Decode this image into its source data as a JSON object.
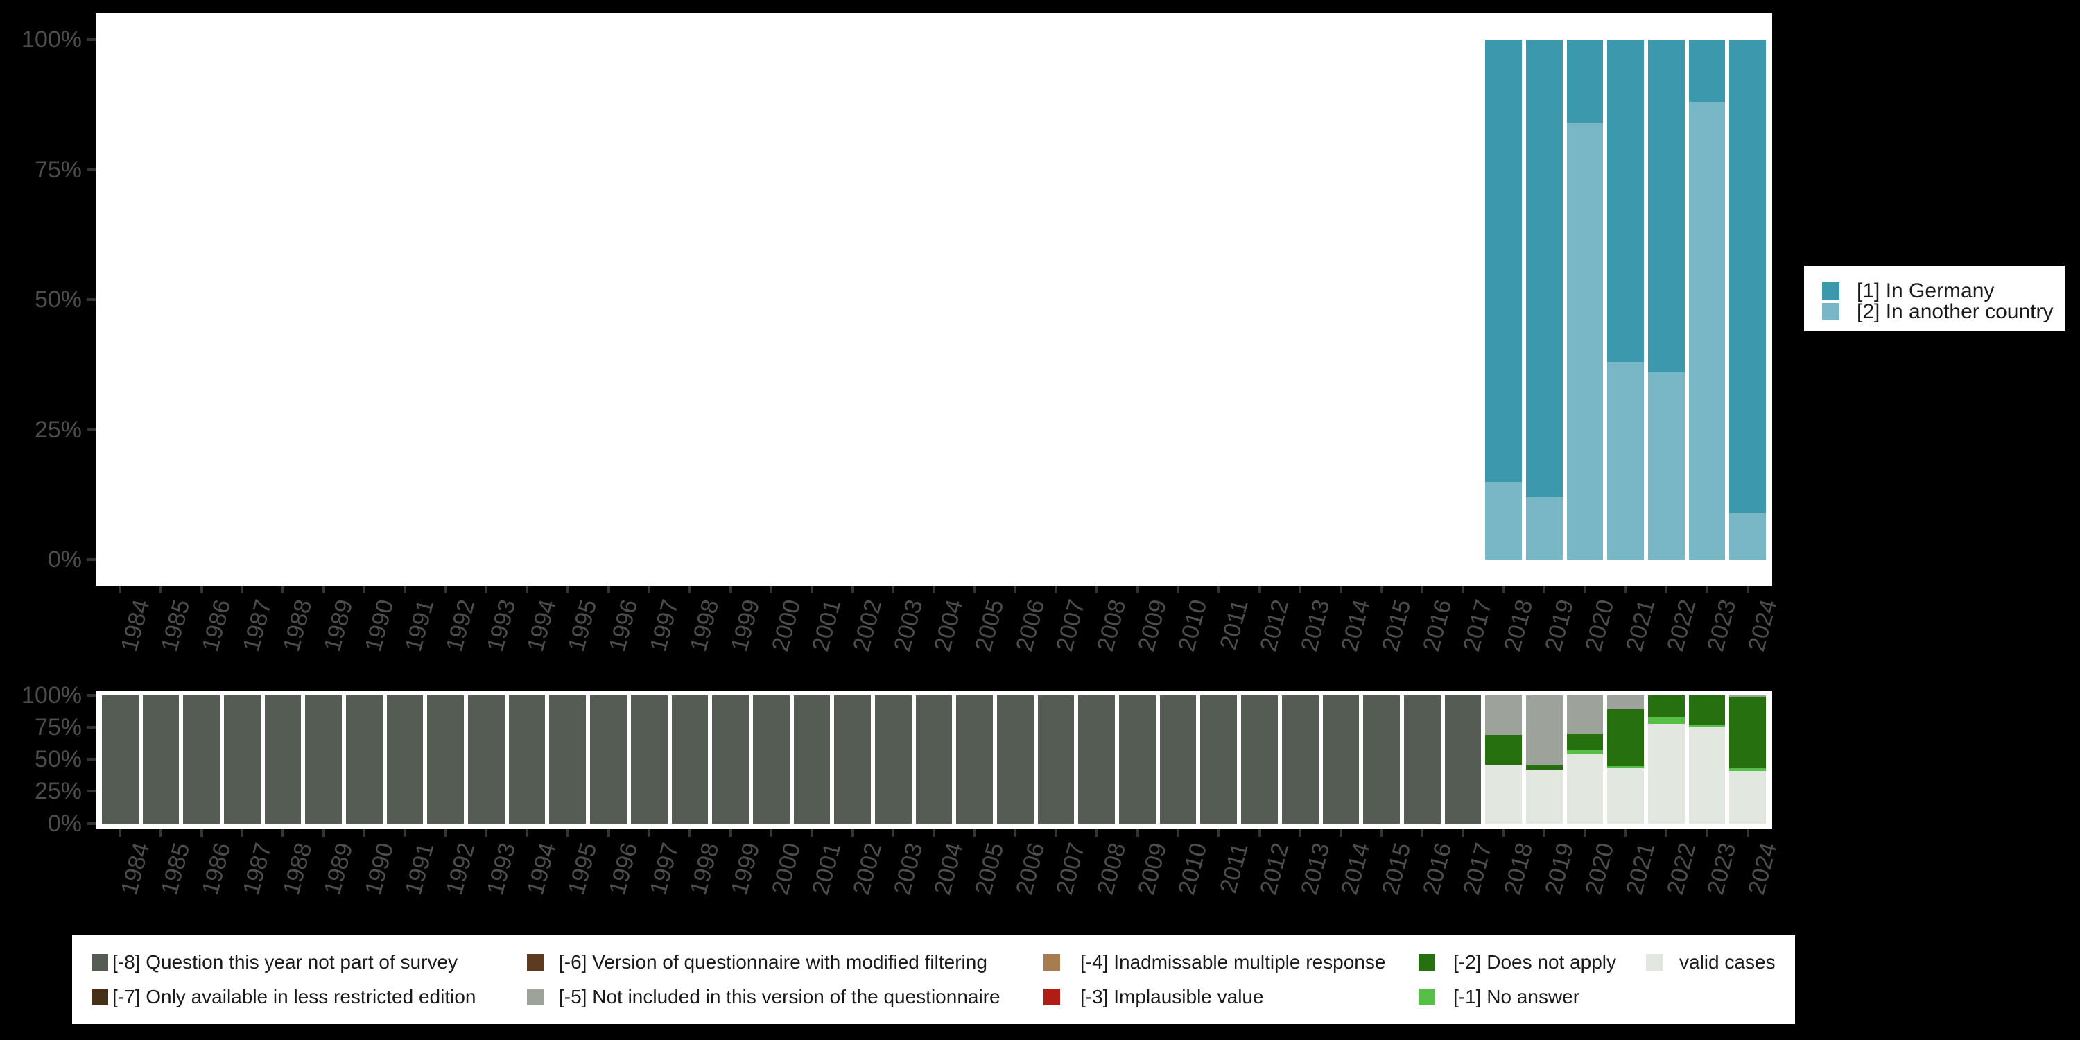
{
  "colors": {
    "background": "#000000",
    "panel": "#ffffff",
    "axis_text": "#4d4d4d",
    "axis_tick": "#333333",
    "legend_text": "#1a1a1a",
    "in_germany": "#3b98ad",
    "another_country": "#79b6c6",
    "m8": "#555c54",
    "m7": "#47301a",
    "m6": "#5d3b21",
    "m5": "#9da39b",
    "m4": "#a87c4f",
    "m3": "#b11c14",
    "m2": "#26700f",
    "m1": "#57bf48",
    "valid": "#e2e7df"
  },
  "axes": {
    "y_tick_labels": [
      "100%",
      "75%",
      "50%",
      "25%",
      "0%"
    ],
    "years": [
      "1984",
      "1985",
      "1986",
      "1987",
      "1988",
      "1989",
      "1990",
      "1991",
      "1992",
      "1993",
      "1994",
      "1995",
      "1996",
      "1997",
      "1998",
      "1999",
      "2000",
      "2001",
      "2002",
      "2003",
      "2004",
      "2005",
      "2006",
      "2007",
      "2008",
      "2009",
      "2010",
      "2011",
      "2012",
      "2013",
      "2014",
      "2015",
      "2016",
      "2017",
      "2018",
      "2019",
      "2020",
      "2021",
      "2022",
      "2023",
      "2024"
    ]
  },
  "legend_top": {
    "items": [
      {
        "label": "[1] In Germany",
        "color_key": "in_germany"
      },
      {
        "label": "[2] In another country",
        "color_key": "another_country"
      }
    ]
  },
  "legend_bottom": {
    "columns": [
      [
        {
          "label": "[-8] Question this year not part of survey",
          "color_key": "m8"
        },
        {
          "label": "[-7] Only available in less restricted edition",
          "color_key": "m7"
        }
      ],
      [
        {
          "label": "[-6] Version of questionnaire with modified filtering",
          "color_key": "m6"
        },
        {
          "label": "[-5] Not included in this version of the questionnaire",
          "color_key": "m5"
        }
      ],
      [
        {
          "label": "[-4] Inadmissable multiple response",
          "color_key": "m4"
        },
        {
          "label": "[-3] Implausible value",
          "color_key": "m3"
        }
      ],
      [
        {
          "label": "[-2] Does not apply",
          "color_key": "m2"
        },
        {
          "label": "[-1] No answer",
          "color_key": "m1"
        }
      ],
      [
        {
          "label": "valid cases",
          "color_key": "valid"
        }
      ]
    ]
  },
  "chart_data": [
    {
      "type": "bar",
      "stacked": true,
      "unit": "percent",
      "title": "",
      "ylabel": "",
      "ylim": [
        0,
        100
      ],
      "y_ticks": [
        0,
        25,
        50,
        75,
        100
      ],
      "x_categories_full_range": [
        "1984",
        "2024"
      ],
      "grid": false,
      "legend_position": "right",
      "series_labels": [
        "[1] In Germany",
        "[2] In another country"
      ],
      "bars": [
        {
          "year": "2018",
          "segments": [
            {
              "key": "in_germany",
              "pct": 85
            },
            {
              "key": "another_country",
              "pct": 15
            }
          ]
        },
        {
          "year": "2019",
          "segments": [
            {
              "key": "in_germany",
              "pct": 88
            },
            {
              "key": "another_country",
              "pct": 12
            }
          ]
        },
        {
          "year": "2020",
          "segments": [
            {
              "key": "in_germany",
              "pct": 16
            },
            {
              "key": "another_country",
              "pct": 84
            }
          ]
        },
        {
          "year": "2021",
          "segments": [
            {
              "key": "in_germany",
              "pct": 62
            },
            {
              "key": "another_country",
              "pct": 38
            }
          ]
        },
        {
          "year": "2022",
          "segments": [
            {
              "key": "in_germany",
              "pct": 64
            },
            {
              "key": "another_country",
              "pct": 36
            }
          ]
        },
        {
          "year": "2023",
          "segments": [
            {
              "key": "in_germany",
              "pct": 12
            },
            {
              "key": "another_country",
              "pct": 88
            }
          ]
        },
        {
          "year": "2024",
          "segments": [
            {
              "key": "in_germany",
              "pct": 91
            },
            {
              "key": "another_country",
              "pct": 9
            }
          ]
        }
      ]
    },
    {
      "type": "bar",
      "stacked": true,
      "unit": "percent",
      "title": "",
      "ylabel": "",
      "ylim": [
        0,
        100
      ],
      "y_ticks": [
        0,
        25,
        50,
        75,
        100
      ],
      "grid": false,
      "legend_position": "bottom",
      "series_labels": [
        "[-8] Question this year not part of survey",
        "[-7] Only available in less restricted edition",
        "[-6] Version of questionnaire with modified filtering",
        "[-5] Not included in this version of the questionnaire",
        "[-4] Inadmissable multiple response",
        "[-3] Implausible value",
        "[-2] Does not apply",
        "[-1] No answer",
        "valid cases"
      ],
      "bars": [
        {
          "year": "1984",
          "segments": [
            {
              "key": "m8",
              "pct": 100
            }
          ]
        },
        {
          "year": "1985",
          "segments": [
            {
              "key": "m8",
              "pct": 100
            }
          ]
        },
        {
          "year": "1986",
          "segments": [
            {
              "key": "m8",
              "pct": 100
            }
          ]
        },
        {
          "year": "1987",
          "segments": [
            {
              "key": "m8",
              "pct": 100
            }
          ]
        },
        {
          "year": "1988",
          "segments": [
            {
              "key": "m8",
              "pct": 100
            }
          ]
        },
        {
          "year": "1989",
          "segments": [
            {
              "key": "m8",
              "pct": 100
            }
          ]
        },
        {
          "year": "1990",
          "segments": [
            {
              "key": "m8",
              "pct": 100
            }
          ]
        },
        {
          "year": "1991",
          "segments": [
            {
              "key": "m8",
              "pct": 100
            }
          ]
        },
        {
          "year": "1992",
          "segments": [
            {
              "key": "m8",
              "pct": 100
            }
          ]
        },
        {
          "year": "1993",
          "segments": [
            {
              "key": "m8",
              "pct": 100
            }
          ]
        },
        {
          "year": "1994",
          "segments": [
            {
              "key": "m8",
              "pct": 100
            }
          ]
        },
        {
          "year": "1995",
          "segments": [
            {
              "key": "m8",
              "pct": 100
            }
          ]
        },
        {
          "year": "1996",
          "segments": [
            {
              "key": "m8",
              "pct": 100
            }
          ]
        },
        {
          "year": "1997",
          "segments": [
            {
              "key": "m8",
              "pct": 100
            }
          ]
        },
        {
          "year": "1998",
          "segments": [
            {
              "key": "m8",
              "pct": 100
            }
          ]
        },
        {
          "year": "1999",
          "segments": [
            {
              "key": "m8",
              "pct": 100
            }
          ]
        },
        {
          "year": "2000",
          "segments": [
            {
              "key": "m8",
              "pct": 100
            }
          ]
        },
        {
          "year": "2001",
          "segments": [
            {
              "key": "m8",
              "pct": 100
            }
          ]
        },
        {
          "year": "2002",
          "segments": [
            {
              "key": "m8",
              "pct": 100
            }
          ]
        },
        {
          "year": "2003",
          "segments": [
            {
              "key": "m8",
              "pct": 100
            }
          ]
        },
        {
          "year": "2004",
          "segments": [
            {
              "key": "m8",
              "pct": 100
            }
          ]
        },
        {
          "year": "2005",
          "segments": [
            {
              "key": "m8",
              "pct": 100
            }
          ]
        },
        {
          "year": "2006",
          "segments": [
            {
              "key": "m8",
              "pct": 100
            }
          ]
        },
        {
          "year": "2007",
          "segments": [
            {
              "key": "m8",
              "pct": 100
            }
          ]
        },
        {
          "year": "2008",
          "segments": [
            {
              "key": "m8",
              "pct": 100
            }
          ]
        },
        {
          "year": "2009",
          "segments": [
            {
              "key": "m8",
              "pct": 100
            }
          ]
        },
        {
          "year": "2010",
          "segments": [
            {
              "key": "m8",
              "pct": 100
            }
          ]
        },
        {
          "year": "2011",
          "segments": [
            {
              "key": "m8",
              "pct": 100
            }
          ]
        },
        {
          "year": "2012",
          "segments": [
            {
              "key": "m8",
              "pct": 100
            }
          ]
        },
        {
          "year": "2013",
          "segments": [
            {
              "key": "m8",
              "pct": 100
            }
          ]
        },
        {
          "year": "2014",
          "segments": [
            {
              "key": "m8",
              "pct": 100
            }
          ]
        },
        {
          "year": "2015",
          "segments": [
            {
              "key": "m8",
              "pct": 100
            }
          ]
        },
        {
          "year": "2016",
          "segments": [
            {
              "key": "m8",
              "pct": 100
            }
          ]
        },
        {
          "year": "2017",
          "segments": [
            {
              "key": "m8",
              "pct": 100
            }
          ]
        },
        {
          "year": "2018",
          "segments": [
            {
              "key": "m5",
              "pct": 31
            },
            {
              "key": "m2",
              "pct": 23
            },
            {
              "key": "valid",
              "pct": 46
            }
          ]
        },
        {
          "year": "2019",
          "segments": [
            {
              "key": "m5",
              "pct": 54
            },
            {
              "key": "m2",
              "pct": 4
            },
            {
              "key": "valid",
              "pct": 42
            }
          ]
        },
        {
          "year": "2020",
          "segments": [
            {
              "key": "m5",
              "pct": 30
            },
            {
              "key": "m2",
              "pct": 13
            },
            {
              "key": "m1",
              "pct": 3
            },
            {
              "key": "valid",
              "pct": 54
            }
          ]
        },
        {
          "year": "2021",
          "segments": [
            {
              "key": "m5",
              "pct": 11
            },
            {
              "key": "m2",
              "pct": 44
            },
            {
              "key": "m1",
              "pct": 2
            },
            {
              "key": "valid",
              "pct": 43
            }
          ]
        },
        {
          "year": "2022",
          "segments": [
            {
              "key": "m2",
              "pct": 17
            },
            {
              "key": "m1",
              "pct": 5
            },
            {
              "key": "valid",
              "pct": 78
            }
          ]
        },
        {
          "year": "2023",
          "segments": [
            {
              "key": "m2",
              "pct": 23
            },
            {
              "key": "m1",
              "pct": 2
            },
            {
              "key": "valid",
              "pct": 75
            }
          ]
        },
        {
          "year": "2024",
          "segments": [
            {
              "key": "m5",
              "pct": 1
            },
            {
              "key": "m2",
              "pct": 56
            },
            {
              "key": "m1",
              "pct": 2
            },
            {
              "key": "valid",
              "pct": 41
            }
          ]
        }
      ]
    }
  ]
}
